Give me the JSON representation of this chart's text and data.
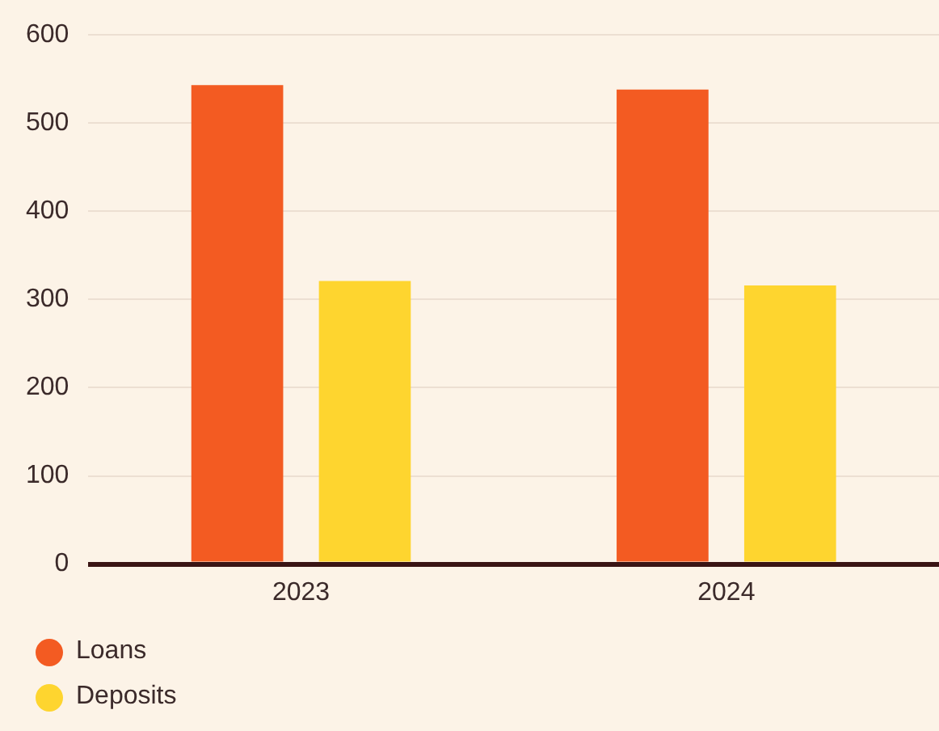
{
  "chart_data": {
    "type": "bar",
    "categories": [
      "2023",
      "2024"
    ],
    "series": [
      {
        "name": "Loans",
        "color": "#f35b22",
        "values": [
          543,
          538
        ]
      },
      {
        "name": "Deposits",
        "color": "#fed52f",
        "values": [
          321,
          316
        ]
      }
    ],
    "ylim": [
      0,
      600
    ],
    "yticks": [
      0,
      100,
      200,
      300,
      400,
      500,
      600
    ],
    "grid": "y",
    "legend": "bottom left"
  }
}
